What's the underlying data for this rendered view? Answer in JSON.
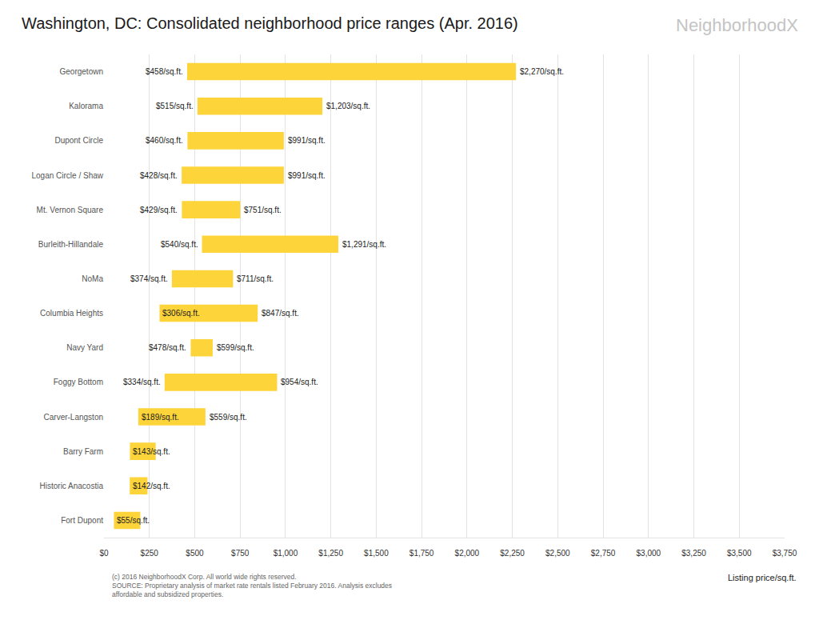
{
  "chart_data": {
    "type": "range_bar",
    "orientation": "horizontal",
    "title": "Washington, DC: Consolidated neighborhood price ranges (Apr. 2016)",
    "brand": "NeighborhoodX",
    "x_label": "Listing price/sq.ft.",
    "footer": [
      "(c) 2016 NeighborhoodX Corp. All world wide rights reserved.",
      "SOURCE: Proprietary analysis of market rate rentals listed February 2016. Analysis excludes",
      "affordable and subsidized properties."
    ],
    "categories": [
      "Georgetown",
      "Kalorama",
      "Dupont Circle",
      "Logan Circle / Shaw",
      "Mt. Vernon Square",
      "Burleith-Hillandale",
      "NoMa",
      "Columbia Heights",
      "Navy Yard",
      "Foggy Bottom",
      "Carver-Langston",
      "Barry Farm",
      "Historic Anacostia",
      "Fort Dupont"
    ],
    "values": [
      [
        458,
        2270
      ],
      [
        515,
        1203
      ],
      [
        460,
        991
      ],
      [
        428,
        991
      ],
      [
        429,
        751
      ],
      [
        540,
        1291
      ],
      [
        374,
        711
      ],
      [
        306,
        847
      ],
      [
        478,
        599
      ],
      [
        334,
        954
      ],
      [
        189,
        559
      ],
      [
        143,
        285
      ],
      [
        142,
        240
      ],
      [
        55,
        200
      ]
    ],
    "value_labels": [
      [
        "$458/sq.ft.",
        "$2,270/sq.ft."
      ],
      [
        "$515/sq.ft.",
        "$1,203/sq.ft."
      ],
      [
        "$460/sq.ft.",
        "$991/sq.ft."
      ],
      [
        "$428/sq.ft.",
        "$991/sq.ft."
      ],
      [
        "$429/sq.ft.",
        "$751/sq.ft."
      ],
      [
        "$540/sq.ft.",
        "$1,291/sq.ft."
      ],
      [
        "$374/sq.ft.",
        "$711/sq.ft."
      ],
      [
        "$306/sq.ft.",
        "$847/sq.ft."
      ],
      [
        "$478/sq.ft.",
        "$599/sq.ft."
      ],
      [
        "$334/sq.ft.",
        "$954/sq.ft."
      ],
      [
        "$189/sq.ft.",
        "$559/sq.ft."
      ],
      [
        "$143/sq.ft.",
        null
      ],
      [
        "$142/sq.ft.",
        null
      ],
      [
        "$55/sq.ft.",
        null
      ]
    ],
    "data_labels": true,
    "color": "#fdd43a",
    "grid": true,
    "xlim": [
      0,
      3750
    ],
    "xticks": [
      {
        "value": 0,
        "label": "$0"
      },
      {
        "value": 250,
        "label": "$250"
      },
      {
        "value": 500,
        "label": "$500"
      },
      {
        "value": 750,
        "label": "$750"
      },
      {
        "value": 1000,
        "label": "$1,000"
      },
      {
        "value": 1250,
        "label": "$1,250"
      },
      {
        "value": 1500,
        "label": "$1,500"
      },
      {
        "value": 1750,
        "label": "$1,750"
      },
      {
        "value": 2000,
        "label": "$2,000"
      },
      {
        "value": 2250,
        "label": "$2,250"
      },
      {
        "value": 2500,
        "label": "$2,500"
      },
      {
        "value": 2750,
        "label": "$2,750"
      },
      {
        "value": 3000,
        "label": "$3,000"
      },
      {
        "value": 3250,
        "label": "$3,250"
      },
      {
        "value": 3500,
        "label": "$3,500"
      },
      {
        "value": 3750,
        "label": "$3,750"
      }
    ]
  }
}
